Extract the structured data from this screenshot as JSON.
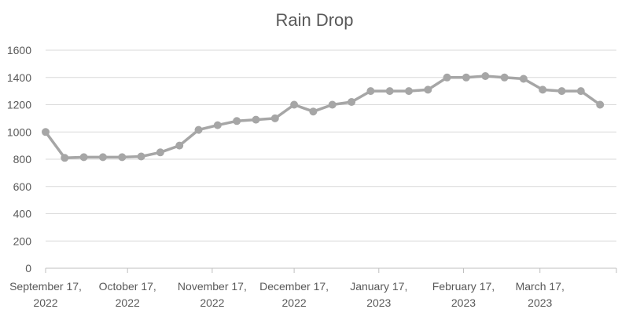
{
  "chart_data": {
    "type": "line",
    "title": "Rain Drop",
    "xlabel": "",
    "ylabel": "",
    "x_range": [
      "2022-09-17",
      "2023-04-14"
    ],
    "ylim": [
      0,
      1600
    ],
    "y_ticks": [
      0,
      200,
      400,
      600,
      800,
      1000,
      1200,
      1400,
      1600
    ],
    "x_tick_labels": [
      {
        "date": "2022-09-17",
        "line1": "September 17,",
        "line2": "2022"
      },
      {
        "date": "2022-10-17",
        "line1": "October 17,",
        "line2": "2022"
      },
      {
        "date": "2022-11-17",
        "line1": "November 17,",
        "line2": "2022"
      },
      {
        "date": "2022-12-17",
        "line1": "December 17,",
        "line2": "2022"
      },
      {
        "date": "2023-01-17",
        "line1": "January 17,",
        "line2": "2023"
      },
      {
        "date": "2023-02-17",
        "line1": "February 17,",
        "line2": "2023"
      },
      {
        "date": "2023-03-17",
        "line1": "March 17,",
        "line2": "2023"
      }
    ],
    "grid": true,
    "legend": "none",
    "series_color": "#a6a6a6",
    "series": [
      {
        "x": [
          "2022-09-17",
          "2022-09-24",
          "2022-10-01",
          "2022-10-08",
          "2022-10-15",
          "2022-10-22",
          "2022-10-29",
          "2022-11-05",
          "2022-11-12",
          "2022-11-19",
          "2022-11-26",
          "2022-12-03",
          "2022-12-10",
          "2022-12-17",
          "2022-12-24",
          "2022-12-31",
          "2023-01-07",
          "2023-01-14",
          "2023-01-21",
          "2023-01-28",
          "2023-02-04",
          "2023-02-11",
          "2023-02-18",
          "2023-02-25",
          "2023-03-04",
          "2023-03-11",
          "2023-03-18",
          "2023-03-25",
          "2023-04-01",
          "2023-04-08"
        ],
        "values": [
          1000,
          810,
          815,
          815,
          815,
          820,
          850,
          900,
          1015,
          1050,
          1080,
          1090,
          1100,
          1200,
          1150,
          1200,
          1220,
          1300,
          1300,
          1300,
          1310,
          1400,
          1400,
          1410,
          1400,
          1390,
          1310,
          1300,
          1300,
          1200
        ]
      }
    ]
  }
}
